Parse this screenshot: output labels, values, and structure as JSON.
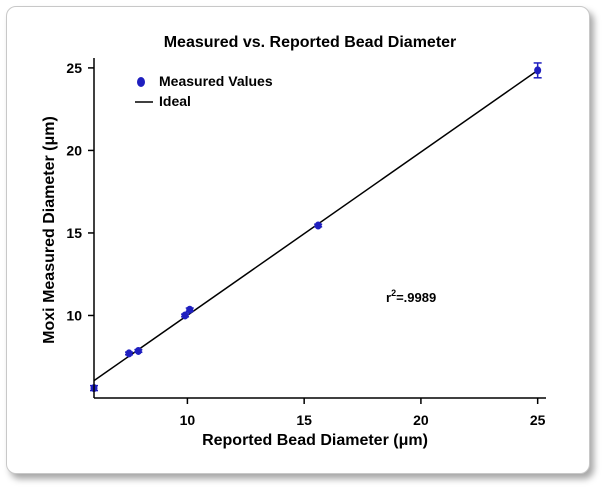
{
  "chart_data": {
    "type": "scatter",
    "title": "Measured vs. Reported Bead Diameter",
    "xlabel": "Reported Bead Diameter (μm)",
    "ylabel": "Moxi Measured Diameter (μm)",
    "xlim": [
      6,
      25.1
    ],
    "ylim": [
      5,
      25.6
    ],
    "xticks": [
      10,
      15,
      20,
      25
    ],
    "yticks": [
      10,
      15,
      20,
      25
    ],
    "legend_position": "top-left",
    "annotation": {
      "base": "r",
      "superscript": "2",
      "rest": "=.9989"
    },
    "series": [
      {
        "name": "Measured Values",
        "kind": "points",
        "color": "#1f1fbf",
        "points": [
          {
            "x": 6.0,
            "y": 5.6,
            "err": 0.15
          },
          {
            "x": 7.5,
            "y": 7.7,
            "err": 0.08
          },
          {
            "x": 7.9,
            "y": 7.85,
            "err": 0.08
          },
          {
            "x": 9.9,
            "y": 10.0,
            "err": 0.08
          },
          {
            "x": 10.1,
            "y": 10.35,
            "err": 0.1
          },
          {
            "x": 15.6,
            "y": 15.45,
            "err": 0.08
          },
          {
            "x": 25.0,
            "y": 24.85,
            "err": 0.45
          }
        ]
      },
      {
        "name": "Ideal",
        "kind": "line",
        "color": "#000000",
        "points": [
          {
            "x": 6.0,
            "y": 6.05
          },
          {
            "x": 25.0,
            "y": 24.85
          }
        ]
      }
    ]
  }
}
